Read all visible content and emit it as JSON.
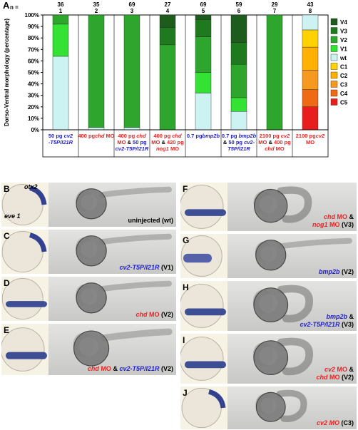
{
  "panel_A_label": "A",
  "chart_data": {
    "type": "bar",
    "stacked": true,
    "ylabel": "Dorso-Ventral morphology (percentage)",
    "yticks": [
      "0%",
      "10%",
      "20%",
      "30%",
      "40%",
      "50%",
      "60%",
      "70%",
      "80%",
      "90%",
      "100%"
    ],
    "ylim": [
      0,
      100
    ],
    "n_label": "n =",
    "n_values": [
      "36",
      "35",
      "69",
      "27",
      "69",
      "59",
      "29",
      "43"
    ],
    "column_numbers": [
      "1",
      "2",
      "3",
      "4",
      "5",
      "6",
      "7",
      "8"
    ],
    "categories": [
      [
        {
          "t": "50 pg ",
          "c": "b",
          "i": false
        },
        {
          "t": "cv2",
          "c": "b",
          "i": true
        },
        {
          "t": "-T5P/I21R",
          "c": "b",
          "i": true
        }
      ],
      [
        {
          "t": "400 pg",
          "c": "r",
          "i": false
        },
        {
          "t": "chd",
          "c": "r",
          "i": true
        },
        {
          "t": " MO",
          "c": "r",
          "i": false
        }
      ],
      [
        {
          "t": "400 pg ",
          "c": "r",
          "i": false
        },
        {
          "t": "chd",
          "c": "r",
          "i": true
        },
        {
          "t": "MO ",
          "c": "r",
          "i": false
        },
        {
          "t": "& ",
          "c": "k",
          "i": false
        },
        {
          "t": "50 pg",
          "c": "b",
          "i": false
        },
        {
          "t": "cv2-T5P/I21R",
          "c": "b",
          "i": true
        }
      ],
      [
        {
          "t": "400 pg ",
          "c": "r",
          "i": false
        },
        {
          "t": "chd",
          "c": "r",
          "i": true
        },
        {
          "t": "MO ",
          "c": "r",
          "i": false
        },
        {
          "t": "& ",
          "c": "k",
          "i": false
        },
        {
          "t": "420 pg",
          "c": "r",
          "i": false
        },
        {
          "t": "nog1",
          "c": "r",
          "i": true
        },
        {
          "t": " MO",
          "c": "r",
          "i": false
        }
      ],
      [
        {
          "t": "0.7 pg",
          "c": "b",
          "i": false
        },
        {
          "t": "bmp2b",
          "c": "b",
          "i": true
        }
      ],
      [
        {
          "t": "0.7 pg ",
          "c": "b",
          "i": false
        },
        {
          "t": "bmp2b",
          "c": "b",
          "i": true
        },
        {
          "t": "& ",
          "c": "k",
          "i": false
        },
        {
          "t": "50 pg ",
          "c": "b",
          "i": false
        },
        {
          "t": "cv2-",
          "c": "b",
          "i": true
        },
        {
          "t": "T5P/I21R",
          "c": "b",
          "i": true
        }
      ],
      [
        {
          "t": "2100 pg ",
          "c": "r",
          "i": false
        },
        {
          "t": "cv2",
          "c": "r",
          "i": true
        },
        {
          "t": "MO ",
          "c": "r",
          "i": false
        },
        {
          "t": "& ",
          "c": "k",
          "i": false
        },
        {
          "t": "400 pg",
          "c": "r",
          "i": false
        },
        {
          "t": "chd",
          "c": "r",
          "i": true
        },
        {
          "t": " MO",
          "c": "r",
          "i": false
        }
      ],
      [
        {
          "t": "2100 pg",
          "c": "r",
          "i": false
        },
        {
          "t": "cv2",
          "c": "r",
          "i": true
        },
        {
          "t": " MO",
          "c": "r",
          "i": false
        }
      ]
    ],
    "legend": [
      "V4",
      "V3",
      "V2",
      "V1",
      "wt",
      "C1",
      "C2",
      "C3",
      "C4",
      "C5"
    ],
    "legend_colors": [
      "#1e5c1e",
      "#1f7a1f",
      "#2ea62e",
      "#33e233",
      "#ccf2f2",
      "#ffd200",
      "#ffb000",
      "#f59a1e",
      "#ee6a14",
      "#e81e1e"
    ],
    "legend_placement": "right",
    "series": {
      "V4": [
        0,
        0,
        0,
        11,
        4,
        24,
        0,
        0
      ],
      "V3": [
        0,
        0,
        0,
        15,
        15,
        19,
        0,
        0
      ],
      "V2": [
        8,
        98,
        98,
        74,
        31,
        29,
        100,
        0
      ],
      "V1": [
        28,
        0,
        0,
        0,
        18,
        12,
        0,
        0
      ],
      "wt": [
        64,
        2,
        2,
        0,
        32,
        16,
        0,
        13
      ],
      "C1": [
        0,
        0,
        0,
        0,
        0,
        0,
        0,
        15
      ],
      "C2": [
        0,
        0,
        0,
        0,
        0,
        0,
        0,
        20
      ],
      "C3": [
        0,
        0,
        0,
        0,
        0,
        0,
        0,
        17
      ],
      "C4": [
        0,
        0,
        0,
        0,
        0,
        0,
        0,
        15
      ],
      "C5": [
        0,
        0,
        0,
        0,
        0,
        0,
        0,
        20
      ]
    }
  },
  "panels": {
    "B": {
      "letter": "B",
      "otx2": "otx2",
      "eve1": "eve 1",
      "caption": [
        {
          "t": "uninjected (wt)",
          "c": "k",
          "i": false
        }
      ]
    },
    "C": {
      "letter": "C",
      "caption": [
        {
          "t": "cv2-T5P/I21R",
          "c": "b",
          "i": true
        },
        {
          "t": " (V1)",
          "c": "k",
          "i": false
        }
      ]
    },
    "D": {
      "letter": "D",
      "caption": [
        {
          "t": "chd",
          "c": "r",
          "i": true
        },
        {
          "t": " MO",
          "c": "r",
          "i": false
        },
        {
          "t": " (V2)",
          "c": "k",
          "i": false
        }
      ]
    },
    "E": {
      "letter": "E",
      "caption": [
        {
          "t": "chd",
          "c": "r",
          "i": true
        },
        {
          "t": " MO",
          "c": "r",
          "i": false
        },
        {
          "t": " & ",
          "c": "k",
          "i": false
        },
        {
          "t": "cv2-T5P/I21R",
          "c": "b",
          "i": true
        },
        {
          "t": " (V2)",
          "c": "k",
          "i": false
        }
      ]
    },
    "F": {
      "letter": "F",
      "caption": [
        {
          "t": "chd",
          "c": "r",
          "i": true
        },
        {
          "t": " MO",
          "c": "r",
          "i": false
        },
        {
          "t": " &",
          "c": "k",
          "i": false
        },
        {
          "t": "\n",
          "c": "k",
          "i": false
        },
        {
          "t": "nog1",
          "c": "r",
          "i": true
        },
        {
          "t": " MO",
          "c": "r",
          "i": false
        },
        {
          "t": " (V3)",
          "c": "k",
          "i": false
        }
      ]
    },
    "G": {
      "letter": "G",
      "caption": [
        {
          "t": "bmp2b",
          "c": "b",
          "i": true
        },
        {
          "t": " (V2)",
          "c": "k",
          "i": false
        }
      ]
    },
    "H": {
      "letter": "H",
      "caption": [
        {
          "t": "bmp2b",
          "c": "b",
          "i": true
        },
        {
          "t": " &",
          "c": "k",
          "i": false
        },
        {
          "t": "\n",
          "c": "k",
          "i": false
        },
        {
          "t": "cv2-T5P/I21R",
          "c": "b",
          "i": true
        },
        {
          "t": " (V3)",
          "c": "k",
          "i": false
        }
      ]
    },
    "I": {
      "letter": "I",
      "caption": [
        {
          "t": "cv2",
          "c": "r",
          "i": true
        },
        {
          "t": " MO",
          "c": "r",
          "i": false
        },
        {
          "t": " &",
          "c": "k",
          "i": false
        },
        {
          "t": "\n",
          "c": "k",
          "i": false
        },
        {
          "t": "chd",
          "c": "r",
          "i": true
        },
        {
          "t": " MO",
          "c": "r",
          "i": false
        },
        {
          "t": " (V2)",
          "c": "k",
          "i": false
        }
      ]
    },
    "J": {
      "letter": "J",
      "caption": [
        {
          "t": "cv2 MO",
          "c": "r",
          "i": true
        },
        {
          "t": " (C3)",
          "c": "k",
          "i": false
        }
      ]
    }
  }
}
